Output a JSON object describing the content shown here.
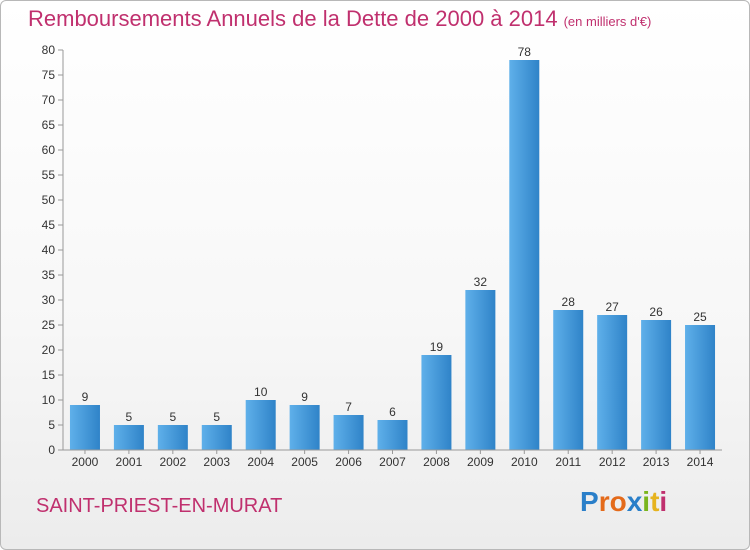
{
  "header": {
    "title": "Remboursements Annuels de la Dette de 2000 à 2014",
    "unit": "(en milliers d'€)"
  },
  "footer": {
    "commune": "SAINT-PRIEST-EN-MURAT",
    "logo_letters": [
      "P",
      "r",
      "o",
      "x",
      "i",
      "t",
      "i"
    ],
    "logo_colors": [
      "#2a7fc9",
      "#e46a1a",
      "#e46a1a",
      "#2a7fc9",
      "#7ab51d",
      "#e6b31e",
      "#c0306e"
    ]
  },
  "chart_data": {
    "type": "bar",
    "title": "Remboursements Annuels de la Dette de 2000 à 2014",
    "categories": [
      "2000",
      "2001",
      "2002",
      "2003",
      "2004",
      "2005",
      "2006",
      "2007",
      "2008",
      "2009",
      "2010",
      "2011",
      "2012",
      "2013",
      "2014"
    ],
    "values": [
      9,
      5,
      5,
      5,
      10,
      9,
      7,
      6,
      19,
      32,
      78,
      28,
      27,
      26,
      25
    ],
    "ylim": [
      0,
      80
    ],
    "yticks": [
      0,
      5,
      10,
      15,
      20,
      25,
      30,
      35,
      40,
      45,
      50,
      55,
      60,
      65,
      70,
      75,
      80
    ],
    "grid": false,
    "data_labels": true,
    "bar_color": "#3a8fd6",
    "bar_color_light": "#5fb0ea"
  }
}
